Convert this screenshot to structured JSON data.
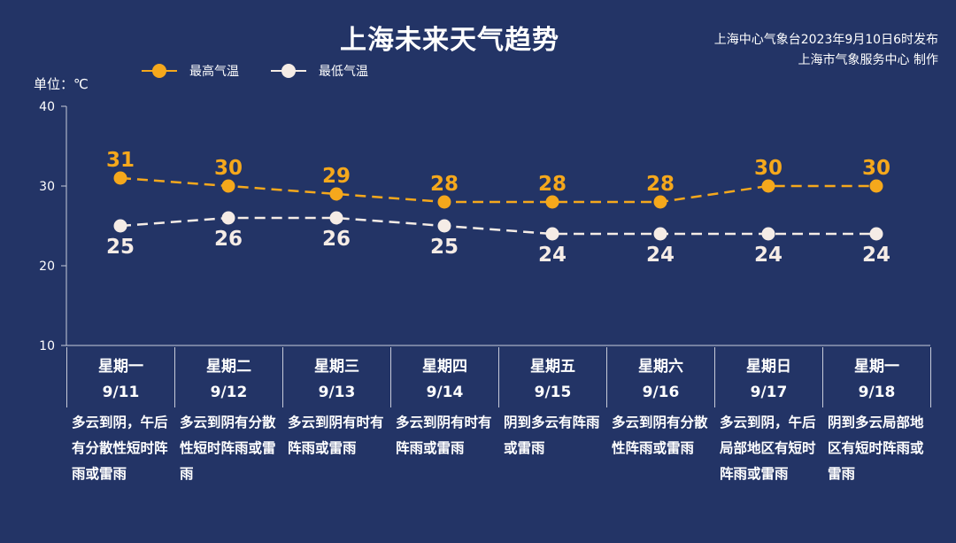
{
  "header": {
    "title": "上海未来天气趋势",
    "source_line1": "上海中心气象台2023年9月10日6时发布",
    "source_line2": "上海市气象服务中心 制作"
  },
  "unit_label": "单位：℃",
  "colors": {
    "background": "#233466",
    "high": "#f5a81c",
    "low": "#f5ece6"
  },
  "chart_data": {
    "type": "line",
    "title": "上海未来天气趋势",
    "ylabel": "单位：℃",
    "ylim": [
      10,
      40
    ],
    "yticks": [
      10,
      20,
      30,
      40
    ],
    "grid": false,
    "legend": "top-left",
    "line_style": "dashed",
    "categories": [
      "星期一 9/11",
      "星期二 9/12",
      "星期三 9/13",
      "星期四 9/14",
      "星期五 9/15",
      "星期六 9/16",
      "星期日 9/17",
      "星期一 9/18"
    ],
    "series": [
      {
        "name": "最高气温",
        "color": "#f5a81c",
        "values": [
          31,
          30,
          29,
          28,
          28,
          28,
          30,
          30
        ]
      },
      {
        "name": "最低气温",
        "color": "#f5ece6",
        "values": [
          25,
          26,
          26,
          25,
          24,
          24,
          24,
          24
        ]
      }
    ]
  },
  "days": [
    {
      "weekday": "星期一",
      "date": "9/11",
      "weather": "多云到阴，午后有分散性短时阵雨或雷雨"
    },
    {
      "weekday": "星期二",
      "date": "9/12",
      "weather": "多云到阴有分散性短时阵雨或雷雨"
    },
    {
      "weekday": "星期三",
      "date": "9/13",
      "weather": "多云到阴有时有阵雨或雷雨"
    },
    {
      "weekday": "星期四",
      "date": "9/14",
      "weather": "多云到阴有时有阵雨或雷雨"
    },
    {
      "weekday": "星期五",
      "date": "9/15",
      "weather": "阴到多云有阵雨或雷雨"
    },
    {
      "weekday": "星期六",
      "date": "9/16",
      "weather": "多云到阴有分散性阵雨或雷雨"
    },
    {
      "weekday": "星期日",
      "date": "9/17",
      "weather": "多云到阴，午后局部地区有短时阵雨或雷雨"
    },
    {
      "weekday": "星期一",
      "date": "9/18",
      "weather": "阴到多云局部地区有短时阵雨或雷雨"
    }
  ]
}
